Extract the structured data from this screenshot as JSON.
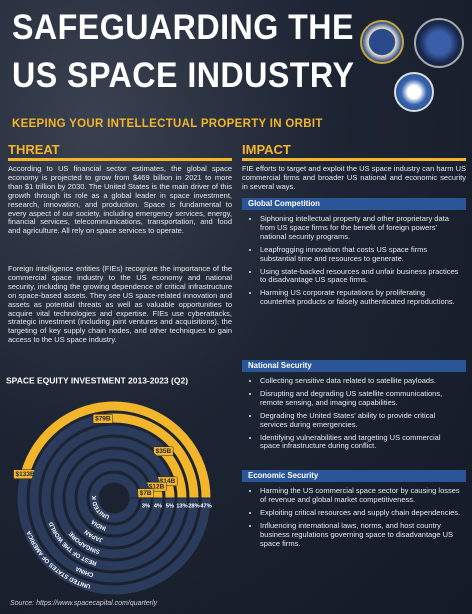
{
  "header": {
    "title_lines": [
      "SAFEGUARDING THE",
      "US SPACE INDUSTRY"
    ],
    "subtitle": "KEEPING YOUR INTELLECTUAL PROPERTY IN ORBIT"
  },
  "threat": {
    "heading": "THREAT",
    "paragraphs": [
      "According to US financial sector estimates, the global space economy is projected to grow from $469 billion in 2021 to more than $1 trillion by 2030. The United States is the main driver of this growth through its role as a global leader in space investment, research, innovation, and production. Space is fundamental to every aspect of our society, including emergency services, energy, financial services, telecommunications, transportation, and food and agriculture. All rely on space services to operate.",
      "Foreign intelligence entities (FIEs) recognize the importance of the commercial space industry to the US economy and national security, including the growing dependence of critical infrastructure on space-based assets. They see US space-related innovation and assets as potential threats as well as valuable opportunities to acquire vital technologies and expertise. FIEs use cyberattacks, strategic investment (including joint ventures and acquisitions), the targeting of key supply chain nodes, and other techniques to gain access to the US space industry."
    ]
  },
  "chart_data": {
    "type": "radial-bar",
    "title": "SPACE EQUITY INVESTMENT 2013-2023 (Q2)",
    "categories": [
      "UNITED STATES OF AMERICA",
      "CHINA",
      "REST OF THE WORLD",
      "SINGAPORE",
      "JAPAN",
      "INDIA",
      "UNITED KINGDOM"
    ],
    "values": [
      133,
      79,
      35,
      14,
      12,
      7,
      null
    ],
    "value_labels": [
      "$133B",
      "$79B",
      "$35B",
      "$14B",
      "$12B",
      "$7B",
      null
    ],
    "shares": [
      47,
      28,
      13,
      5,
      4,
      3,
      null
    ],
    "share_labels": [
      "47%",
      "28%",
      "13%",
      "5%",
      "4%",
      "3%",
      null
    ],
    "color": "#f3b52a",
    "track_color": "#2b3b5c"
  },
  "impact": {
    "heading": "IMPACT",
    "intro": "FIE efforts to target and exploit the US space industry can harm US commercial firms and broader US national and economic security in several ways.",
    "sections": [
      {
        "title": "Global Competition",
        "bullets": [
          "Siphoning intellectual property and other proprietary data from US space firms for the benefit of foreign powers' national security programs.",
          "Leapfrogging innovation that costs US space firms substantial time and resources to generate.",
          "Using state-backed resources and unfair business practices to disadvantage US space firms.",
          "Harming US corporate reputations by proliferating counterfeit products or falsely authenticated reproductions."
        ]
      },
      {
        "title": "National Security",
        "bullets": [
          "Collecting sensitive data related to satellite payloads.",
          "Disrupting and degrading US satellite communications, remote sensing, and imaging capabilities.",
          "Degrading the United States' ability to provide critical services during emergencies.",
          "Identifying vulnerabilities and targeting US commercial space infrastructure during conflict."
        ]
      },
      {
        "title": "Economic Security",
        "bullets": [
          "Harming the US commercial space sector by causing losses of revenue and global market competitiveness.",
          "Exploiting critical resources and supply chain dependencies.",
          "Influencing international laws, norms, and host country business regulations governing space to disadvantage US space firms."
        ]
      }
    ]
  },
  "source": "Source: https://www.spacecapital.com/quarterly"
}
